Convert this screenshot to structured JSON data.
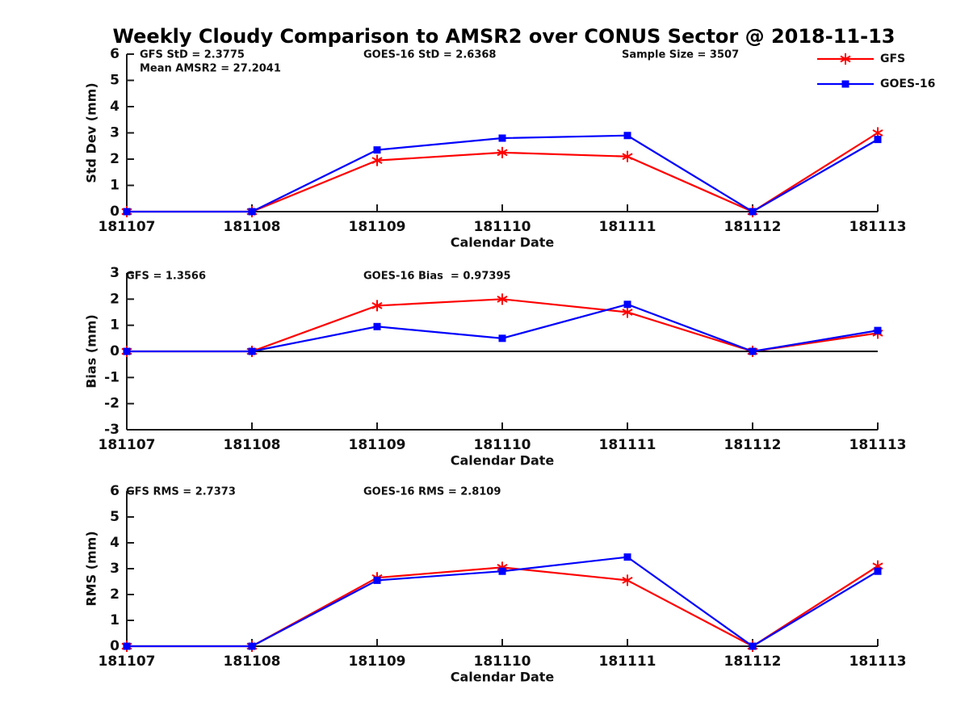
{
  "title": "Weekly Cloudy Comparison to AMSR2 over CONUS Sector @ 2018-11-13",
  "colors": {
    "gfs": "#ff0000",
    "goes16": "#0000ff",
    "axis": "#1c1c1c",
    "zero_line": "#000000",
    "text": "#111111"
  },
  "legend": {
    "position": "top-right",
    "entries": [
      {
        "label": "GFS",
        "color": "#ff0000",
        "marker": "asterisk"
      },
      {
        "label": "GOES-16",
        "color": "#0000ff",
        "marker": "square"
      }
    ]
  },
  "chart_data": [
    {
      "type": "line",
      "name": "std-dev-panel",
      "xlabel": "Calendar Date",
      "ylabel": "Std Dev (mm)",
      "ylim": [
        0,
        6
      ],
      "yticks": [
        0,
        1,
        2,
        3,
        4,
        5,
        6
      ],
      "categories": [
        "181107",
        "181108",
        "181109",
        "181110",
        "181111",
        "181112",
        "181113"
      ],
      "series": [
        {
          "name": "GFS",
          "color": "#ff0000",
          "marker": "asterisk",
          "values": [
            0,
            0,
            1.95,
            2.25,
            2.1,
            0,
            3.0
          ]
        },
        {
          "name": "GOES-16",
          "color": "#0000ff",
          "marker": "square",
          "values": [
            0,
            0,
            2.35,
            2.8,
            2.9,
            0,
            2.75
          ]
        }
      ],
      "annotations": [
        "GFS StD = 2.3775",
        "Mean AMSR2 = 27.2041",
        "GOES-16 StD = 2.6368",
        "Sample Size = 3507"
      ],
      "zero_line": false,
      "grid": false,
      "show_legend": true
    },
    {
      "type": "line",
      "name": "bias-panel",
      "xlabel": "Calendar Date",
      "ylabel": "Bias (mm)",
      "ylim": [
        -3,
        3
      ],
      "yticks": [
        -3,
        -2,
        -1,
        0,
        1,
        2,
        3
      ],
      "categories": [
        "181107",
        "181108",
        "181109",
        "181110",
        "181111",
        "181112",
        "181113"
      ],
      "series": [
        {
          "name": "GFS",
          "color": "#ff0000",
          "marker": "asterisk",
          "values": [
            0,
            0,
            1.75,
            2.0,
            1.5,
            0,
            0.7
          ]
        },
        {
          "name": "GOES-16",
          "color": "#0000ff",
          "marker": "square",
          "values": [
            0,
            0,
            0.95,
            0.5,
            1.8,
            0,
            0.8
          ]
        }
      ],
      "annotations": [
        "GFS = 1.3566",
        "GOES-16 Bias  = 0.97395"
      ],
      "zero_line": true,
      "grid": false,
      "show_legend": false
    },
    {
      "type": "line",
      "name": "rms-panel",
      "xlabel": "Calendar Date",
      "ylabel": "RMS (mm)",
      "ylim": [
        0,
        6
      ],
      "yticks": [
        0,
        1,
        2,
        3,
        4,
        5,
        6
      ],
      "categories": [
        "181107",
        "181108",
        "181109",
        "181110",
        "181111",
        "181112",
        "181113"
      ],
      "series": [
        {
          "name": "GFS",
          "color": "#ff0000",
          "marker": "asterisk",
          "values": [
            0,
            0,
            2.65,
            3.05,
            2.55,
            0,
            3.1
          ]
        },
        {
          "name": "GOES-16",
          "color": "#0000ff",
          "marker": "square",
          "values": [
            0,
            0,
            2.55,
            2.9,
            3.45,
            0,
            2.9
          ]
        }
      ],
      "annotations": [
        "GFS RMS = 2.7373",
        "GOES-16 RMS = 2.8109"
      ],
      "zero_line": false,
      "grid": false,
      "show_legend": false
    }
  ]
}
